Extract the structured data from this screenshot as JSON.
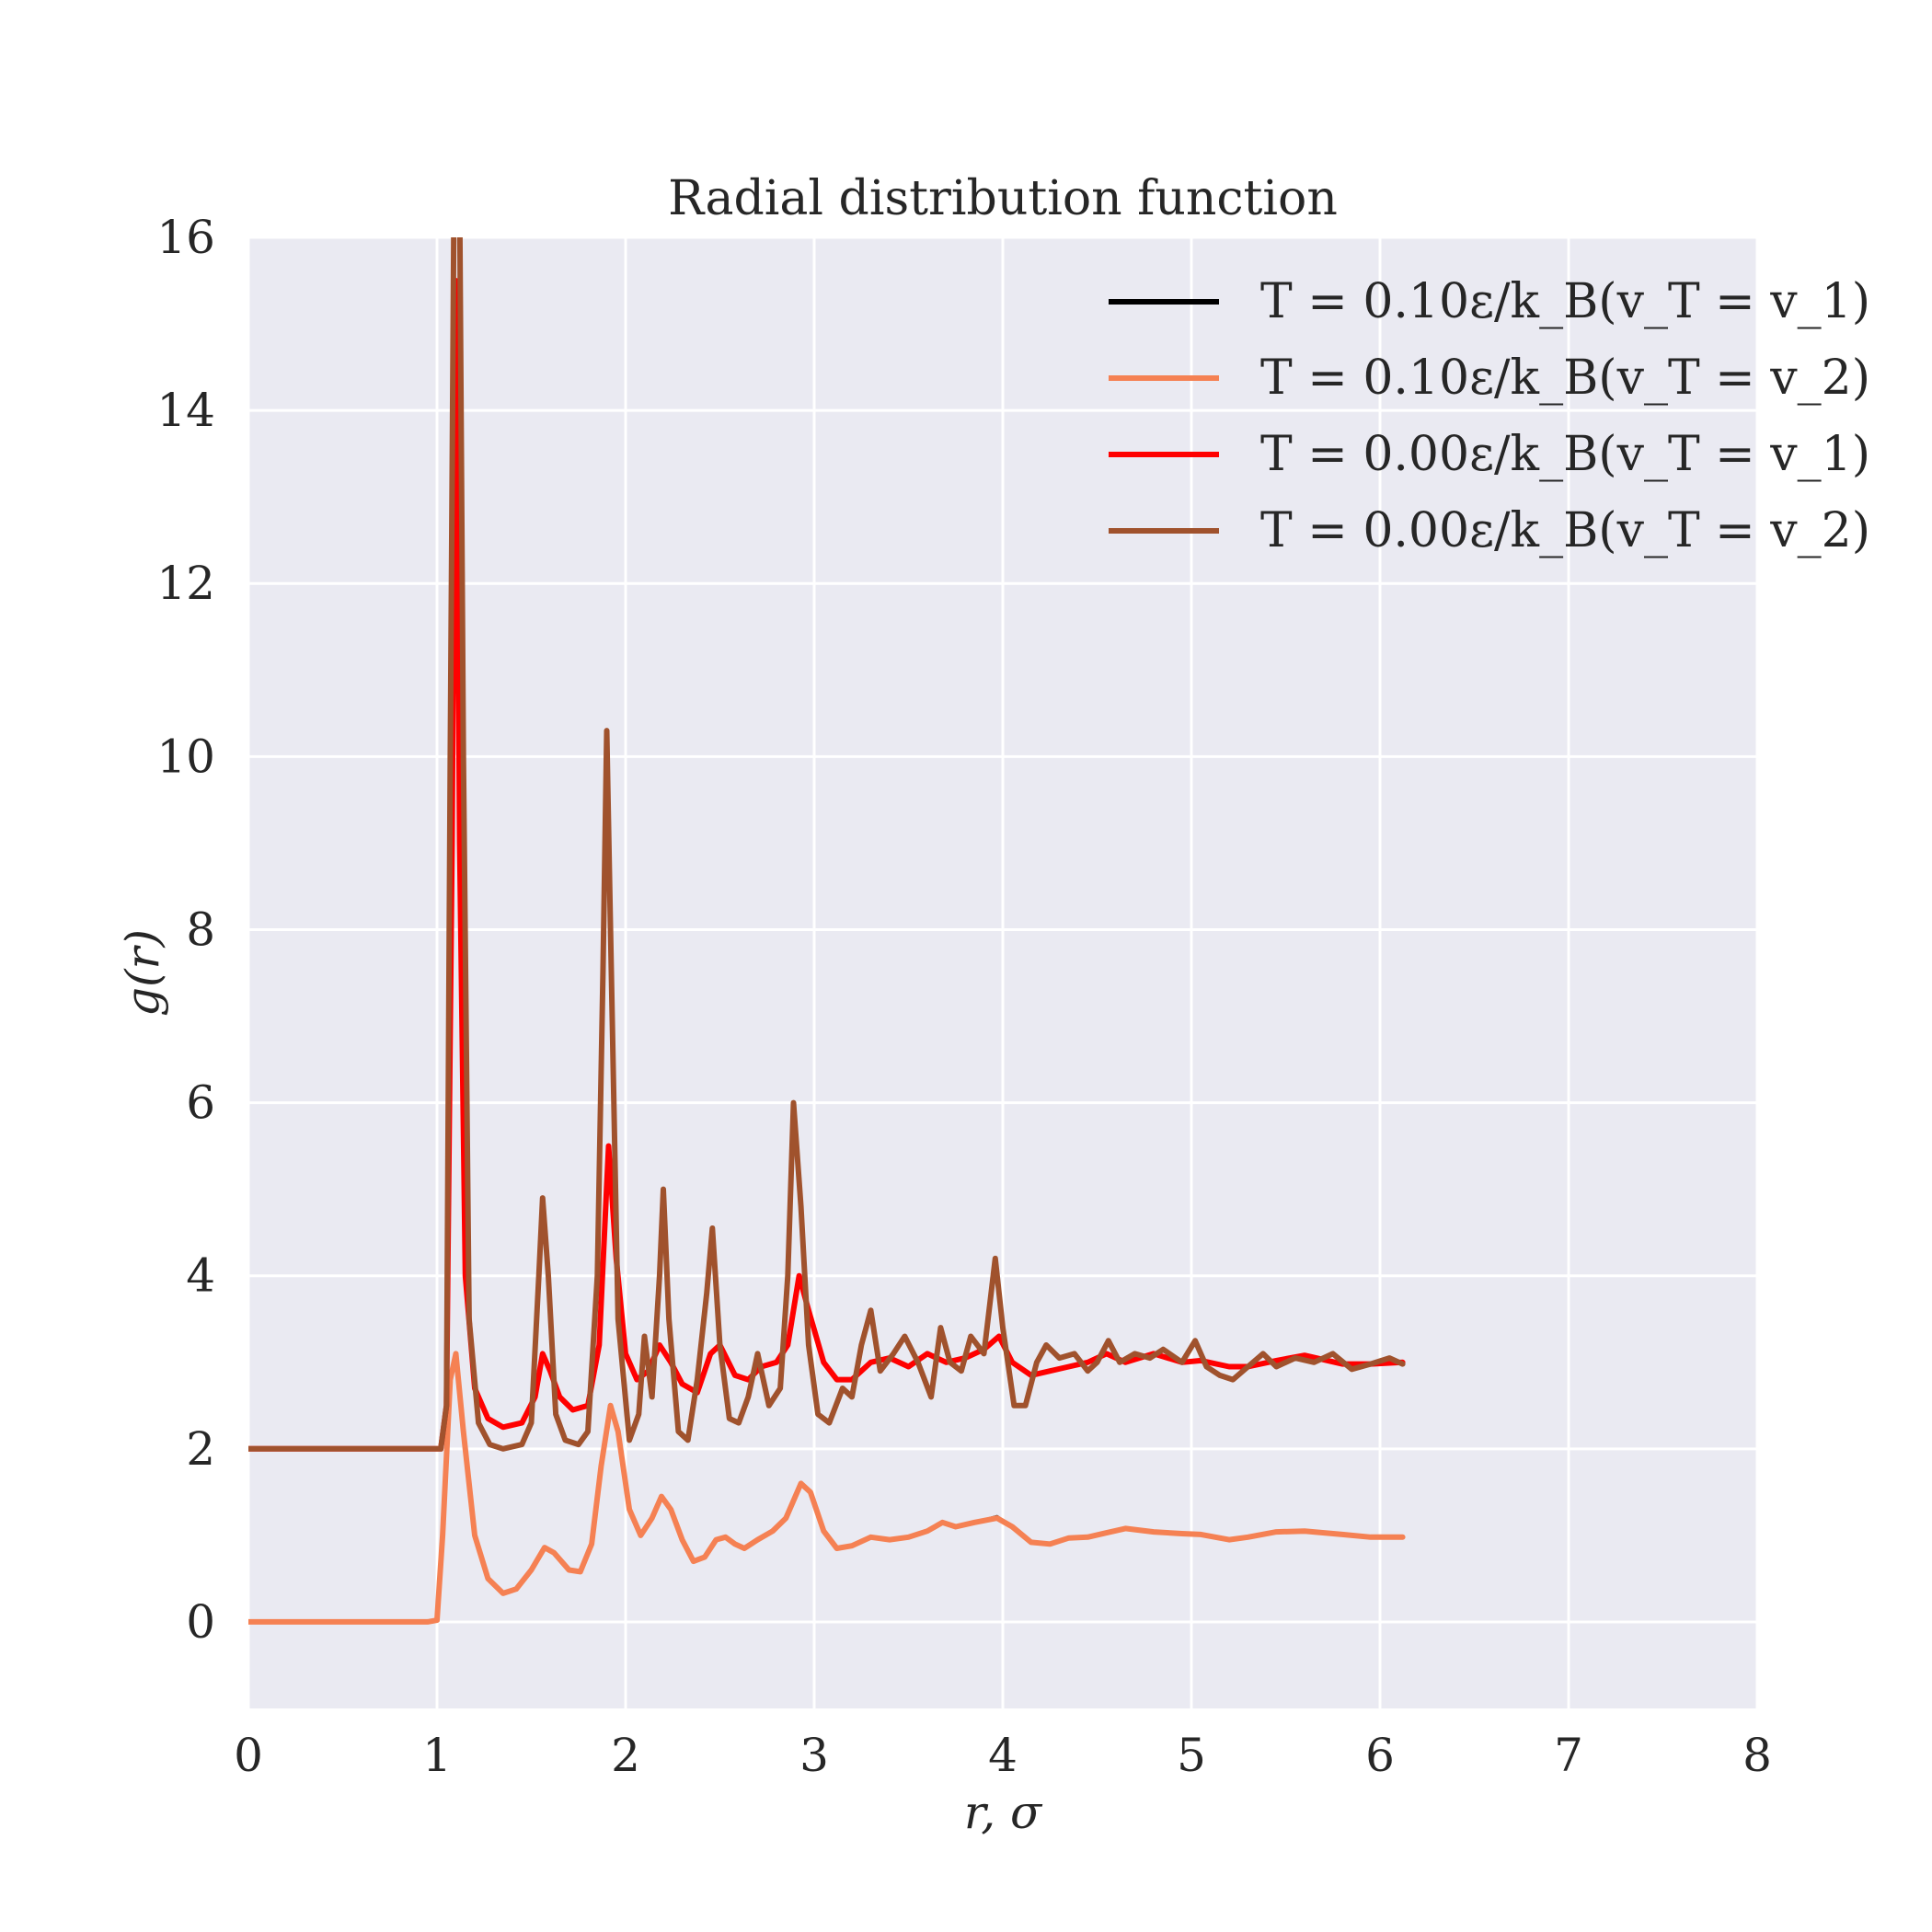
{
  "chart_data": {
    "type": "line",
    "title": "Radial distribution function",
    "xlabel": "r, σ",
    "ylabel": "g(r)",
    "xlim": [
      0,
      8
    ],
    "ylim": [
      -1,
      16
    ],
    "xticks": [
      0,
      1,
      2,
      3,
      4,
      5,
      6,
      7,
      8
    ],
    "yticks": [
      0,
      2,
      4,
      6,
      8,
      10,
      12,
      14,
      16
    ],
    "grid": true,
    "legend_position": "top-right",
    "series": [
      {
        "name": "T = 0.10ε/k_B(v_T = v_1)",
        "color": "#000000",
        "points": [
          [
            0,
            0
          ],
          [
            0.95,
            0
          ],
          [
            1.0,
            0.02
          ],
          [
            1.03,
            1.0
          ],
          [
            1.07,
            2.8
          ],
          [
            1.1,
            3.1
          ],
          [
            1.14,
            2.2
          ],
          [
            1.2,
            1.0
          ],
          [
            1.27,
            0.5
          ],
          [
            1.35,
            0.33
          ],
          [
            1.42,
            0.38
          ],
          [
            1.5,
            0.6
          ],
          [
            1.57,
            0.86
          ],
          [
            1.62,
            0.8
          ],
          [
            1.7,
            0.6
          ],
          [
            1.76,
            0.58
          ],
          [
            1.82,
            0.9
          ],
          [
            1.87,
            1.8
          ],
          [
            1.92,
            2.5
          ],
          [
            1.96,
            2.2
          ],
          [
            2.02,
            1.3
          ],
          [
            2.08,
            1.0
          ],
          [
            2.14,
            1.2
          ],
          [
            2.19,
            1.45
          ],
          [
            2.24,
            1.3
          ],
          [
            2.3,
            0.95
          ],
          [
            2.36,
            0.7
          ],
          [
            2.42,
            0.75
          ],
          [
            2.48,
            0.95
          ],
          [
            2.53,
            0.98
          ],
          [
            2.58,
            0.9
          ],
          [
            2.63,
            0.85
          ],
          [
            2.7,
            0.95
          ],
          [
            2.78,
            1.05
          ],
          [
            2.85,
            1.2
          ],
          [
            2.93,
            1.6
          ],
          [
            2.98,
            1.5
          ],
          [
            3.05,
            1.05
          ],
          [
            3.12,
            0.85
          ],
          [
            3.2,
            0.88
          ],
          [
            3.3,
            0.98
          ],
          [
            3.4,
            0.95
          ],
          [
            3.5,
            0.98
          ],
          [
            3.6,
            1.05
          ],
          [
            3.68,
            1.15
          ],
          [
            3.75,
            1.1
          ],
          [
            3.85,
            1.15
          ],
          [
            3.97,
            1.22
          ],
          [
            4.05,
            1.1
          ],
          [
            4.15,
            0.92
          ],
          [
            4.25,
            0.9
          ],
          [
            4.35,
            0.97
          ],
          [
            4.45,
            0.98
          ],
          [
            4.55,
            1.03
          ],
          [
            4.65,
            1.08
          ],
          [
            4.8,
            1.04
          ],
          [
            4.95,
            1.02
          ],
          [
            5.05,
            1.01
          ],
          [
            5.2,
            0.95
          ],
          [
            5.3,
            0.98
          ],
          [
            5.45,
            1.04
          ],
          [
            5.6,
            1.05
          ],
          [
            5.8,
            1.01
          ],
          [
            5.95,
            0.98
          ],
          [
            6.12,
            0.98
          ]
        ]
      },
      {
        "name": "T = 0.10ε/k_B(v_T = v_2)",
        "color": "#f58153",
        "points": [
          [
            0,
            0
          ],
          [
            0.95,
            0
          ],
          [
            1.0,
            0.02
          ],
          [
            1.03,
            1.0
          ],
          [
            1.07,
            2.8
          ],
          [
            1.1,
            3.1
          ],
          [
            1.14,
            2.2
          ],
          [
            1.2,
            1.0
          ],
          [
            1.27,
            0.5
          ],
          [
            1.35,
            0.33
          ],
          [
            1.42,
            0.38
          ],
          [
            1.5,
            0.6
          ],
          [
            1.57,
            0.86
          ],
          [
            1.62,
            0.8
          ],
          [
            1.7,
            0.6
          ],
          [
            1.76,
            0.58
          ],
          [
            1.82,
            0.9
          ],
          [
            1.87,
            1.8
          ],
          [
            1.92,
            2.5
          ],
          [
            1.96,
            2.2
          ],
          [
            2.02,
            1.3
          ],
          [
            2.08,
            1.0
          ],
          [
            2.14,
            1.2
          ],
          [
            2.19,
            1.45
          ],
          [
            2.24,
            1.3
          ],
          [
            2.3,
            0.95
          ],
          [
            2.36,
            0.7
          ],
          [
            2.42,
            0.75
          ],
          [
            2.48,
            0.95
          ],
          [
            2.53,
            0.98
          ],
          [
            2.58,
            0.9
          ],
          [
            2.63,
            0.85
          ],
          [
            2.7,
            0.95
          ],
          [
            2.78,
            1.05
          ],
          [
            2.85,
            1.2
          ],
          [
            2.93,
            1.6
          ],
          [
            2.98,
            1.5
          ],
          [
            3.05,
            1.05
          ],
          [
            3.12,
            0.85
          ],
          [
            3.2,
            0.88
          ],
          [
            3.3,
            0.98
          ],
          [
            3.4,
            0.95
          ],
          [
            3.5,
            0.98
          ],
          [
            3.6,
            1.05
          ],
          [
            3.68,
            1.15
          ],
          [
            3.75,
            1.1
          ],
          [
            3.85,
            1.15
          ],
          [
            3.97,
            1.2
          ],
          [
            4.05,
            1.1
          ],
          [
            4.15,
            0.92
          ],
          [
            4.25,
            0.9
          ],
          [
            4.35,
            0.97
          ],
          [
            4.45,
            0.98
          ],
          [
            4.55,
            1.03
          ],
          [
            4.65,
            1.08
          ],
          [
            4.8,
            1.04
          ],
          [
            4.95,
            1.02
          ],
          [
            5.05,
            1.01
          ],
          [
            5.2,
            0.95
          ],
          [
            5.3,
            0.98
          ],
          [
            5.45,
            1.04
          ],
          [
            5.6,
            1.05
          ],
          [
            5.8,
            1.01
          ],
          [
            5.95,
            0.98
          ],
          [
            6.12,
            0.98
          ]
        ]
      },
      {
        "name": "T = 0.00ε/k_B(v_T = v_1)",
        "color": "#ff0000",
        "points": [
          [
            0,
            2
          ],
          [
            1.02,
            2
          ],
          [
            1.05,
            2.5
          ],
          [
            1.08,
            9.0
          ],
          [
            1.1,
            15.5
          ],
          [
            1.12,
            9.0
          ],
          [
            1.15,
            4.0
          ],
          [
            1.2,
            2.7
          ],
          [
            1.27,
            2.35
          ],
          [
            1.35,
            2.25
          ],
          [
            1.45,
            2.3
          ],
          [
            1.52,
            2.6
          ],
          [
            1.56,
            3.1
          ],
          [
            1.6,
            2.9
          ],
          [
            1.65,
            2.6
          ],
          [
            1.72,
            2.45
          ],
          [
            1.8,
            2.5
          ],
          [
            1.86,
            3.2
          ],
          [
            1.91,
            5.5
          ],
          [
            1.95,
            4.2
          ],
          [
            2.0,
            3.1
          ],
          [
            2.06,
            2.8
          ],
          [
            2.12,
            2.9
          ],
          [
            2.18,
            3.2
          ],
          [
            2.24,
            3.0
          ],
          [
            2.3,
            2.75
          ],
          [
            2.38,
            2.65
          ],
          [
            2.45,
            3.1
          ],
          [
            2.5,
            3.2
          ],
          [
            2.58,
            2.85
          ],
          [
            2.65,
            2.8
          ],
          [
            2.72,
            2.95
          ],
          [
            2.8,
            3.0
          ],
          [
            2.86,
            3.2
          ],
          [
            2.92,
            4.0
          ],
          [
            2.97,
            3.6
          ],
          [
            3.05,
            3.0
          ],
          [
            3.12,
            2.8
          ],
          [
            3.2,
            2.8
          ],
          [
            3.3,
            3.0
          ],
          [
            3.4,
            3.05
          ],
          [
            3.5,
            2.95
          ],
          [
            3.6,
            3.1
          ],
          [
            3.7,
            3.0
          ],
          [
            3.8,
            3.05
          ],
          [
            3.9,
            3.15
          ],
          [
            3.98,
            3.3
          ],
          [
            4.05,
            3.0
          ],
          [
            4.15,
            2.85
          ],
          [
            4.25,
            2.9
          ],
          [
            4.35,
            2.95
          ],
          [
            4.45,
            3.0
          ],
          [
            4.55,
            3.1
          ],
          [
            4.65,
            3.0
          ],
          [
            4.8,
            3.1
          ],
          [
            4.95,
            3.0
          ],
          [
            5.05,
            3.02
          ],
          [
            5.2,
            2.95
          ],
          [
            5.3,
            2.95
          ],
          [
            5.45,
            3.02
          ],
          [
            5.6,
            3.08
          ],
          [
            5.8,
            2.98
          ],
          [
            5.95,
            2.98
          ],
          [
            6.12,
            3.0
          ]
        ]
      },
      {
        "name": "T = 0.00ε/k_B(v_T = v_2)",
        "color": "#a0522d",
        "points": [
          [
            0,
            2
          ],
          [
            1.02,
            2
          ],
          [
            1.05,
            2.5
          ],
          [
            1.07,
            10.0
          ],
          [
            1.09,
            16.5
          ],
          [
            1.12,
            16.5
          ],
          [
            1.14,
            10.0
          ],
          [
            1.17,
            3.5
          ],
          [
            1.22,
            2.3
          ],
          [
            1.28,
            2.05
          ],
          [
            1.35,
            2.0
          ],
          [
            1.45,
            2.05
          ],
          [
            1.5,
            2.3
          ],
          [
            1.54,
            4.0
          ],
          [
            1.56,
            4.9
          ],
          [
            1.59,
            4.0
          ],
          [
            1.63,
            2.4
          ],
          [
            1.68,
            2.1
          ],
          [
            1.75,
            2.05
          ],
          [
            1.8,
            2.2
          ],
          [
            1.85,
            4.0
          ],
          [
            1.88,
            7.5
          ],
          [
            1.9,
            10.3
          ],
          [
            1.92,
            8.0
          ],
          [
            1.96,
            3.5
          ],
          [
            2.02,
            2.1
          ],
          [
            2.07,
            2.4
          ],
          [
            2.1,
            3.3
          ],
          [
            2.14,
            2.6
          ],
          [
            2.18,
            4.0
          ],
          [
            2.2,
            5.0
          ],
          [
            2.23,
            3.5
          ],
          [
            2.28,
            2.2
          ],
          [
            2.33,
            2.1
          ],
          [
            2.38,
            2.8
          ],
          [
            2.43,
            3.8
          ],
          [
            2.46,
            4.55
          ],
          [
            2.5,
            3.2
          ],
          [
            2.55,
            2.35
          ],
          [
            2.6,
            2.3
          ],
          [
            2.65,
            2.6
          ],
          [
            2.7,
            3.1
          ],
          [
            2.76,
            2.5
          ],
          [
            2.82,
            2.7
          ],
          [
            2.86,
            4.0
          ],
          [
            2.89,
            6.0
          ],
          [
            2.93,
            4.8
          ],
          [
            2.97,
            3.2
          ],
          [
            3.02,
            2.4
          ],
          [
            3.08,
            2.3
          ],
          [
            3.15,
            2.7
          ],
          [
            3.2,
            2.6
          ],
          [
            3.25,
            3.2
          ],
          [
            3.3,
            3.6
          ],
          [
            3.35,
            2.9
          ],
          [
            3.42,
            3.1
          ],
          [
            3.48,
            3.3
          ],
          [
            3.55,
            3.0
          ],
          [
            3.62,
            2.6
          ],
          [
            3.67,
            3.4
          ],
          [
            3.72,
            3.0
          ],
          [
            3.78,
            2.9
          ],
          [
            3.83,
            3.3
          ],
          [
            3.9,
            3.1
          ],
          [
            3.96,
            4.2
          ],
          [
            4.0,
            3.4
          ],
          [
            4.06,
            2.5
          ],
          [
            4.12,
            2.5
          ],
          [
            4.18,
            3.0
          ],
          [
            4.23,
            3.2
          ],
          [
            4.3,
            3.05
          ],
          [
            4.38,
            3.1
          ],
          [
            4.45,
            2.9
          ],
          [
            4.5,
            3.0
          ],
          [
            4.56,
            3.25
          ],
          [
            4.62,
            3.0
          ],
          [
            4.7,
            3.1
          ],
          [
            4.78,
            3.05
          ],
          [
            4.85,
            3.15
          ],
          [
            4.95,
            3.0
          ],
          [
            5.02,
            3.25
          ],
          [
            5.08,
            2.95
          ],
          [
            5.15,
            2.85
          ],
          [
            5.22,
            2.8
          ],
          [
            5.3,
            2.95
          ],
          [
            5.38,
            3.1
          ],
          [
            5.45,
            2.95
          ],
          [
            5.55,
            3.05
          ],
          [
            5.65,
            3.0
          ],
          [
            5.75,
            3.1
          ],
          [
            5.85,
            2.92
          ],
          [
            5.95,
            2.98
          ],
          [
            6.05,
            3.05
          ],
          [
            6.12,
            2.98
          ]
        ]
      }
    ]
  }
}
